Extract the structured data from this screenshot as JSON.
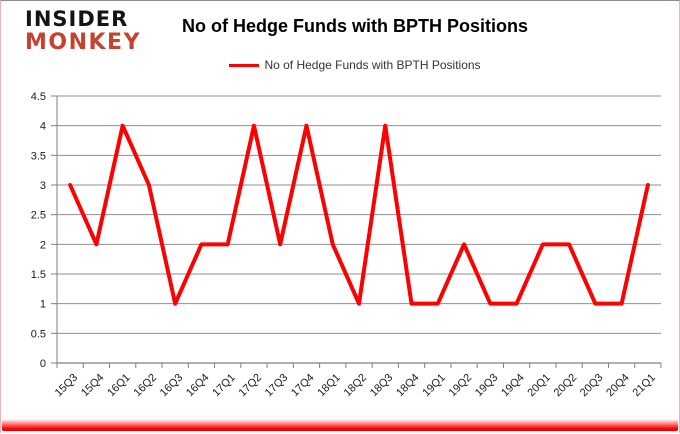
{
  "logo": {
    "line1": "INSIDER",
    "line2": "MONKEY",
    "line1_color": "#141414",
    "line2_color": "#c7422e"
  },
  "header": {
    "title": "No of Hedge Funds with BPTH Positions"
  },
  "legend": {
    "label": "No of Hedge Funds with BPTH Positions",
    "line_color": "#ff0000"
  },
  "chart_data": {
    "type": "line",
    "title": "No of Hedge Funds with BPTH Positions",
    "categories": [
      "15Q3",
      "15Q4",
      "16Q1",
      "16Q2",
      "16Q3",
      "16Q4",
      "17Q1",
      "17Q2",
      "17Q3",
      "17Q4",
      "18Q1",
      "18Q2",
      "18Q3",
      "18Q4",
      "19Q1",
      "19Q2",
      "19Q3",
      "19Q4",
      "20Q1",
      "20Q2",
      "20Q3",
      "20Q4",
      "21Q1"
    ],
    "series": [
      {
        "name": "No of Hedge Funds with BPTH Positions",
        "color": "#ff0000",
        "values": [
          3,
          2,
          4,
          3,
          1,
          2,
          2,
          4,
          2,
          4,
          2,
          1,
          4,
          1,
          1,
          2,
          1,
          1,
          2,
          2,
          1,
          1,
          3
        ]
      }
    ],
    "xlabel": "",
    "ylabel": "",
    "ylim": [
      0,
      4.5
    ],
    "yticks": [
      0,
      0.5,
      1,
      1.5,
      2,
      2.5,
      3,
      3.5,
      4,
      4.5
    ],
    "grid": true,
    "legend_position": "top",
    "gridline_color": "#8f8f8f",
    "axis_color": "#7f7f7f",
    "tick_label_color": "#1a1a1a"
  }
}
